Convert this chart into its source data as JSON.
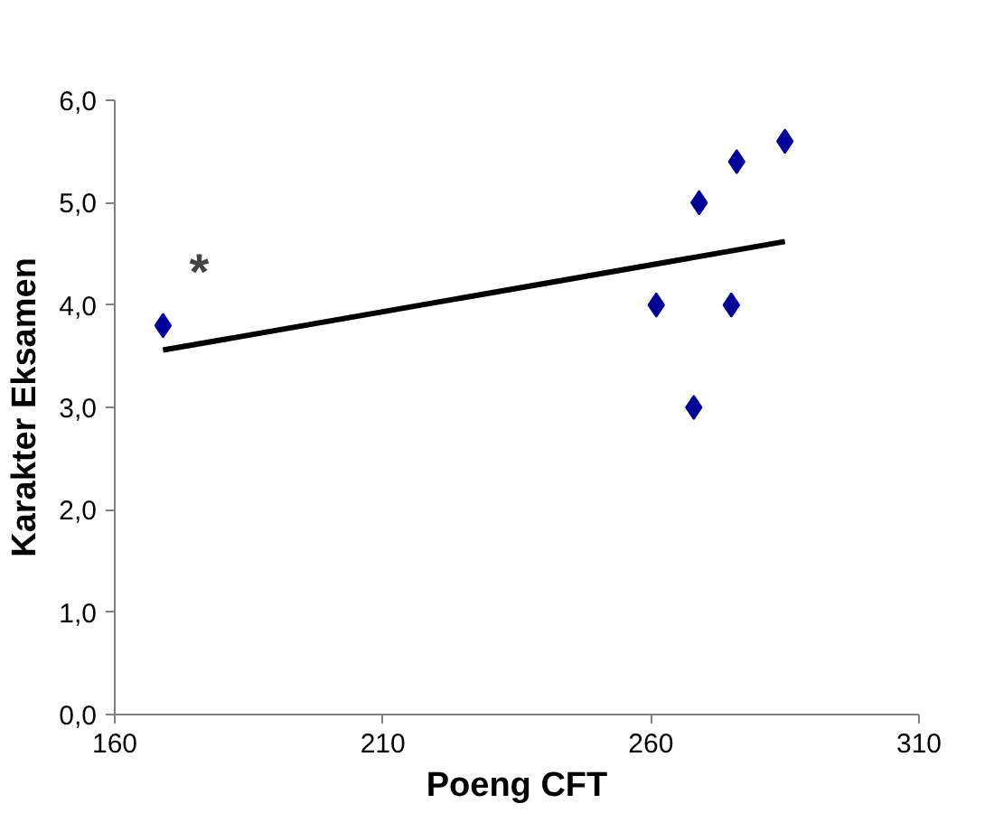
{
  "chart_data": {
    "type": "scatter",
    "xlabel": "Poeng CFT",
    "ylabel": "Karakter Eksamen",
    "x": [
      169,
      269,
      276,
      285,
      261,
      275,
      268
    ],
    "series": [
      {
        "color": "#000099",
        "marker": "diamond",
        "values": [
          3.8,
          5.0,
          5.4,
          5.6,
          4.0,
          4.0,
          3.0
        ]
      },
      {
        "type": "line",
        "color": "#000000",
        "x": [
          169,
          285
        ],
        "values": [
          3.56,
          4.62
        ],
        "marker": "none",
        "line_style": "solid"
      }
    ],
    "xlim": [
      160,
      310
    ],
    "ylim": [
      0,
      6
    ],
    "xticks": [
      160,
      210,
      260,
      310
    ],
    "yticks": [
      {
        "value": 0,
        "label": "0,0"
      },
      {
        "value": 1,
        "label": "1,0"
      },
      {
        "value": 2,
        "label": "2,0"
      },
      {
        "value": 3,
        "label": "3,0"
      },
      {
        "value": 4,
        "label": "4,0"
      },
      {
        "value": 5,
        "label": "5,0"
      },
      {
        "value": 6,
        "label": "6,0"
      }
    ],
    "annotations": [
      "*"
    ],
    "grid": false
  }
}
